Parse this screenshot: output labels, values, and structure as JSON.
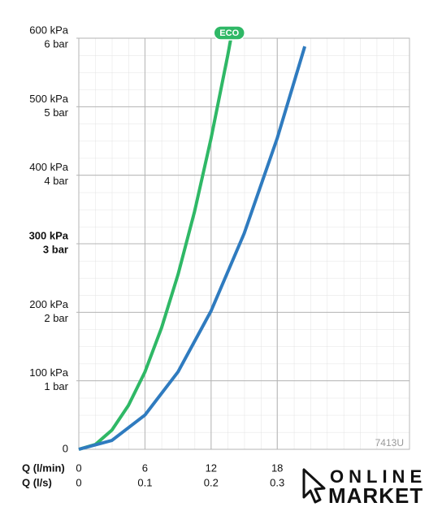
{
  "chart_data": {
    "type": "line",
    "xlabel": "Q (l/min)",
    "x2label": "Q (l/s)",
    "xlim": [
      0,
      30
    ],
    "xticks": [
      0,
      6,
      12,
      18
    ],
    "x2lim": [
      0,
      0.5
    ],
    "x2ticks": [
      0,
      0.1,
      0.2,
      0.3
    ],
    "ylim": [
      0,
      600
    ],
    "yticks": [
      0,
      {
        "value": 100,
        "label": "100 kPa"
      },
      {
        "value": 200,
        "label": "200 kPa"
      },
      {
        "value": 300,
        "label": "300 kPa"
      },
      {
        "value": 400,
        "label": "400 kPa"
      },
      {
        "value": 500,
        "label": "500 kPa"
      },
      {
        "value": 600,
        "label": "600 kPa"
      }
    ],
    "y2lim": [
      0,
      6
    ],
    "y2ticks": [
      {
        "value": 1,
        "label": "1 bar"
      },
      {
        "value": 2,
        "label": "2 bar"
      },
      {
        "value": 3,
        "label": "3 bar"
      },
      {
        "value": 4,
        "label": "4 bar"
      },
      {
        "value": 5,
        "label": "5 bar"
      },
      {
        "value": 6,
        "label": "6 bar"
      }
    ],
    "grid": true,
    "series": [
      {
        "name": "ECO",
        "color": "#2fb866",
        "x": [
          0,
          1.5,
          3,
          4.5,
          6,
          7.5,
          9,
          10.5,
          12,
          13.5,
          13.8
        ],
        "values": [
          0,
          7,
          28,
          64,
          113,
          177,
          255,
          347,
          454,
          574,
          600
        ]
      },
      {
        "color": "#2f7bbf",
        "x": [
          0,
          3,
          6,
          9,
          12,
          15,
          18,
          20.5
        ],
        "values": [
          0,
          13,
          50,
          113,
          202,
          315,
          454,
          588
        ]
      }
    ],
    "model": "7413U",
    "watermark": [
      "ONLINE",
      "MARKET"
    ]
  }
}
